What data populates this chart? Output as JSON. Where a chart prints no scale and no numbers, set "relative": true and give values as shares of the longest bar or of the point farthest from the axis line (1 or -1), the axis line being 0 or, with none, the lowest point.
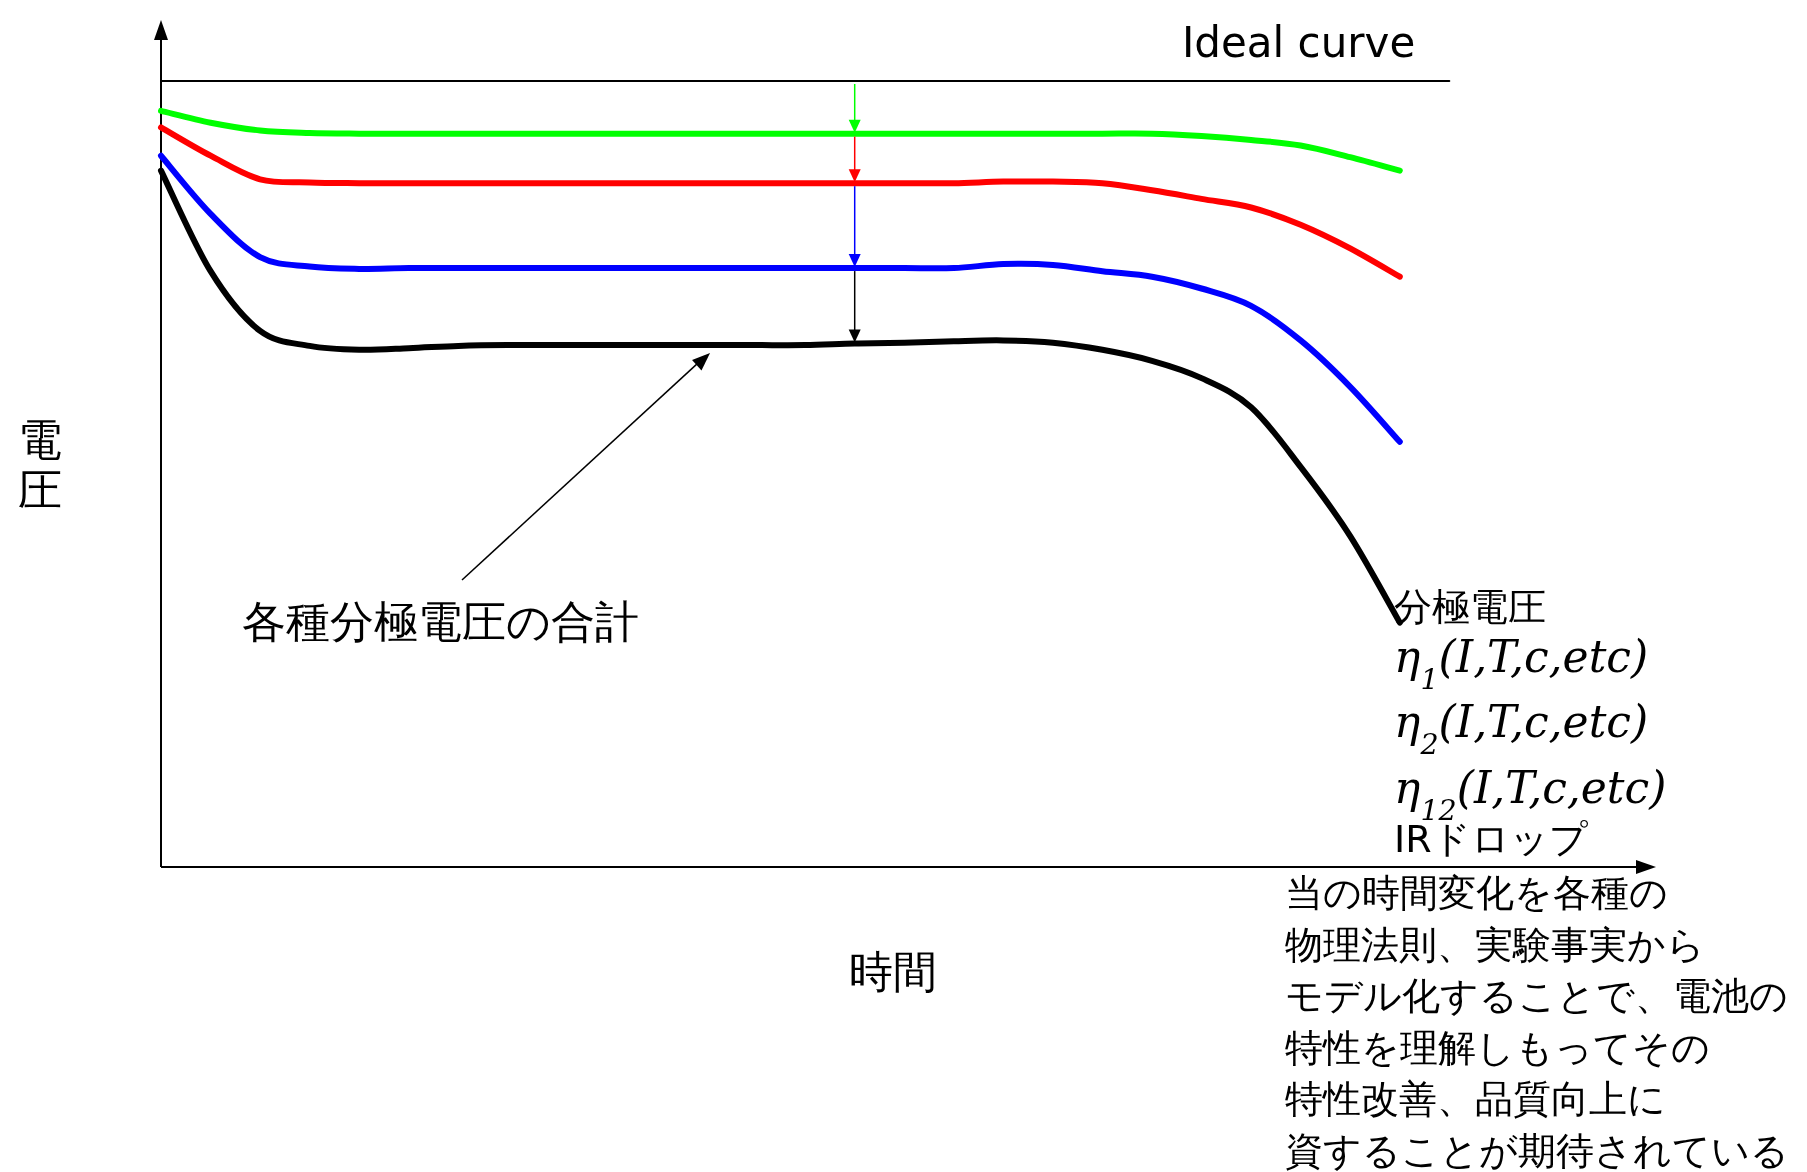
{
  "chart_data": {
    "type": "line",
    "relative": true,
    "ylabel": "電圧",
    "xlabel": "時間",
    "marker": "none",
    "line_style": "solid",
    "categories": [
      null,
      null,
      null,
      null,
      null,
      null,
      null,
      null,
      null,
      null,
      null,
      null,
      null,
      null,
      null,
      null,
      null,
      null,
      null,
      null,
      null,
      null,
      null,
      null,
      null,
      null,
      null
    ],
    "series": [
      {
        "name": "Ideal curve",
        "color": "#000000",
        "values": [
          1,
          1,
          1,
          1,
          1,
          1,
          1,
          1,
          1,
          1,
          1,
          1,
          1,
          1,
          1,
          1,
          1,
          1,
          1,
          1,
          1,
          1,
          1,
          1,
          1,
          1,
          1
        ]
      },
      {
        "color": "#00ff00",
        "values": [
          0.962,
          0.947,
          0.937,
          0.934,
          0.933,
          0.933,
          0.933,
          0.933,
          0.933,
          0.933,
          0.933,
          0.933,
          0.933,
          0.933,
          0.933,
          0.933,
          0.933,
          0.933,
          0.933,
          0.933,
          0.933,
          0.93,
          0.925,
          0.918,
          0.903,
          0.886,
          null
        ]
      },
      {
        "color": "#ff0000",
        "values": [
          0.941,
          0.905,
          0.875,
          0.871,
          0.87,
          0.87,
          0.87,
          0.87,
          0.87,
          0.87,
          0.87,
          0.87,
          0.87,
          0.87,
          0.87,
          0.87,
          0.87,
          0.872,
          0.872,
          0.87,
          0.861,
          0.85,
          0.839,
          0.817,
          0.787,
          0.751,
          null
        ]
      },
      {
        "color": "#0000ff",
        "values": [
          0.905,
          0.831,
          0.776,
          0.764,
          0.761,
          0.762,
          0.762,
          0.762,
          0.762,
          0.762,
          0.762,
          0.762,
          0.762,
          0.762,
          0.762,
          0.762,
          0.762,
          0.767,
          0.766,
          0.758,
          0.751,
          0.736,
          0.714,
          0.67,
          0.611,
          0.541,
          null
        ]
      },
      {
        "color": "#000000",
        "values": [
          0.886,
          0.758,
          0.682,
          0.663,
          0.658,
          0.66,
          0.663,
          0.664,
          0.664,
          0.664,
          0.664,
          0.664,
          0.664,
          0.664,
          0.666,
          0.667,
          0.669,
          0.67,
          0.667,
          0.658,
          0.644,
          0.622,
          0.585,
          0.509,
          0.421,
          0.311,
          null
        ]
      }
    ],
    "annotations": [
      "各種分極電圧の合計",
      "分極電圧",
      "η$_{1}$(I,T,c,etc)",
      "η$_{2}$(I,T,c,etc)",
      "η$_{12}$(I,T,c,etc)",
      "IRドロップ",
      "当の時間変化を各種の",
      "物理法則、実験事実から",
      "モデル化することで、電池の",
      "特性を理解しもってその",
      "特性改善、品質向上に",
      "資することが期待されている"
    ]
  }
}
